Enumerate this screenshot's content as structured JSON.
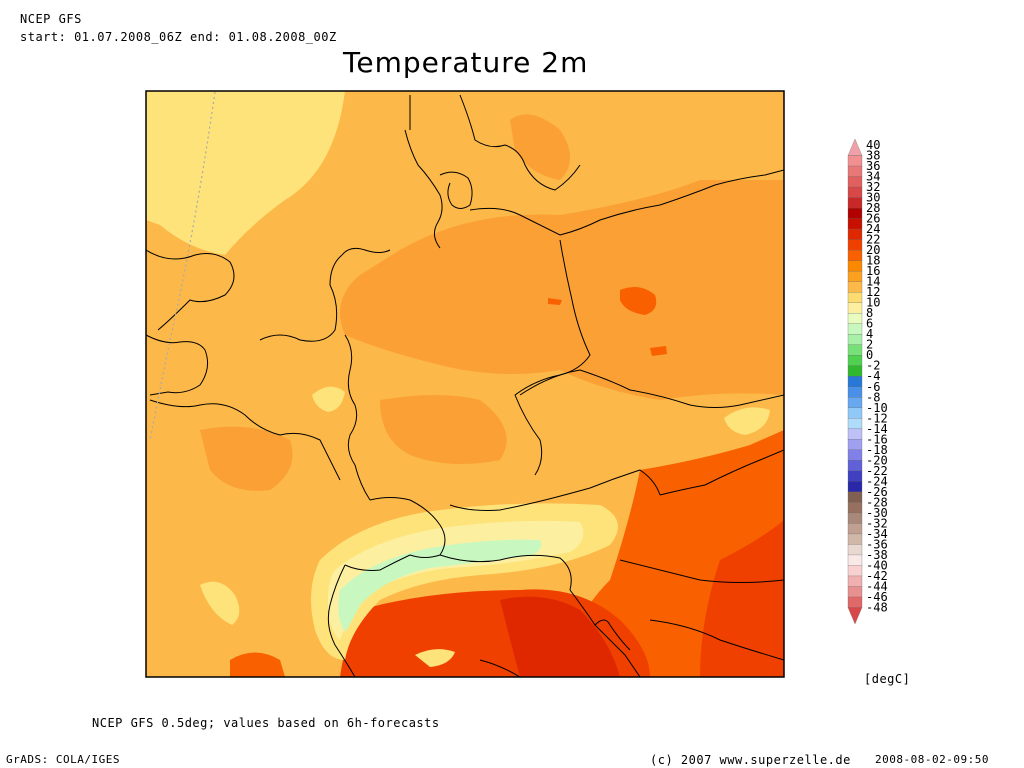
{
  "header": {
    "model": "NCEP GFS",
    "period": "start: 01.07.2008_06Z end: 01.08.2008_00Z",
    "title": "Temperature 2m"
  },
  "legend": {
    "unit": "[degC]",
    "levels": [
      {
        "label": "40",
        "color": "#f0a0a8"
      },
      {
        "label": "38",
        "color": "#f09090"
      },
      {
        "label": "36",
        "color": "#e87878"
      },
      {
        "label": "34",
        "color": "#e06060"
      },
      {
        "label": "32",
        "color": "#d84848"
      },
      {
        "label": "30",
        "color": "#c82828"
      },
      {
        "label": "28",
        "color": "#b00000"
      },
      {
        "label": "26",
        "color": "#c81000"
      },
      {
        "label": "24",
        "color": "#e02800"
      },
      {
        "label": "22",
        "color": "#f04000"
      },
      {
        "label": "20",
        "color": "#f86000"
      },
      {
        "label": "18",
        "color": "#fa8800"
      },
      {
        "label": "16",
        "color": "#fca020"
      },
      {
        "label": "14",
        "color": "#fcb848"
      },
      {
        "label": "12",
        "color": "#fcdc70"
      },
      {
        "label": "10",
        "color": "#fcf0a0"
      },
      {
        "label": "8",
        "color": "#e8fcc0"
      },
      {
        "label": "6",
        "color": "#c8f8c0"
      },
      {
        "label": "4",
        "color": "#a8f0a8"
      },
      {
        "label": "2",
        "color": "#78e078"
      },
      {
        "label": "0",
        "color": "#50d050"
      },
      {
        "label": "-2",
        "color": "#30b830"
      },
      {
        "label": "-4",
        "color": "#2878d8"
      },
      {
        "label": "-6",
        "color": "#4890e8"
      },
      {
        "label": "-8",
        "color": "#68a8f0"
      },
      {
        "label": "-10",
        "color": "#90c8f8"
      },
      {
        "label": "-12",
        "color": "#b0dcfc"
      },
      {
        "label": "-14",
        "color": "#c0c0f8"
      },
      {
        "label": "-16",
        "color": "#a0a0f0"
      },
      {
        "label": "-18",
        "color": "#8080e8"
      },
      {
        "label": "-20",
        "color": "#6060d8"
      },
      {
        "label": "-22",
        "color": "#4040c0"
      },
      {
        "label": "-24",
        "color": "#2828a8"
      },
      {
        "label": "-26",
        "color": "#806050"
      },
      {
        "label": "-28",
        "color": "#987060"
      },
      {
        "label": "-30",
        "color": "#a88878"
      },
      {
        "label": "-32",
        "color": "#c0a090"
      },
      {
        "label": "-34",
        "color": "#d0b8a8"
      },
      {
        "label": "-36",
        "color": "#e8d8d0"
      },
      {
        "label": "-38",
        "color": "#f8e8e8"
      },
      {
        "label": "-40",
        "color": "#f8d0d0"
      },
      {
        "label": "-42",
        "color": "#f0b0b0"
      },
      {
        "label": "-44",
        "color": "#e89090"
      },
      {
        "label": "-46",
        "color": "#e06868"
      },
      {
        "label": "-48",
        "color": "#d84848"
      }
    ]
  },
  "footer": {
    "note": "NCEP GFS 0.5deg; values based on 6h-forecasts",
    "grads": "GrADS: COLA/IGES",
    "copyright": "(c) 2007 www.superzelle.de",
    "timestamp": "2008-08-02-09:50"
  }
}
